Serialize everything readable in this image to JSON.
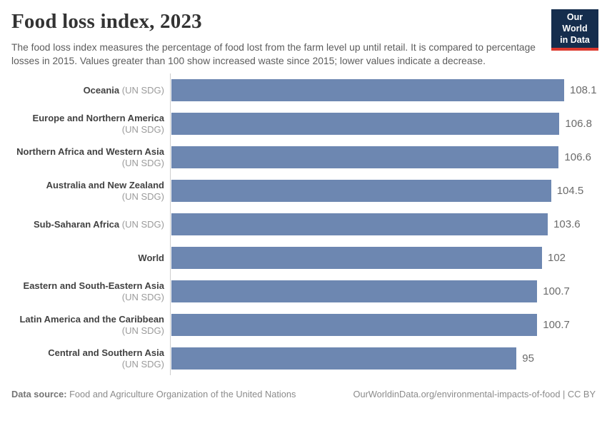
{
  "header": {
    "title": "Food loss index, 2023",
    "subtitle": "The food loss index measures the percentage of food lost from the farm level up until retail. It is compared to percentage losses in 2015. Values greater than 100 show increased waste since 2015; lower values indicate a decrease.",
    "logo": {
      "line1": "Our World",
      "line2": "in Data"
    }
  },
  "chart_data": {
    "type": "bar",
    "orientation": "horizontal",
    "title": "Food loss index, 2023",
    "xlabel": "",
    "ylabel": "",
    "xlim": [
      0,
      108.1
    ],
    "grid": false,
    "legend": "none",
    "categories": [
      "Oceania (UN SDG)",
      "Europe and Northern America (UN SDG)",
      "Northern Africa and Western Asia (UN SDG)",
      "Australia and New Zealand (UN SDG)",
      "Sub-Saharan Africa (UN SDG)",
      "World",
      "Eastern and South-Eastern Asia (UN SDG)",
      "Latin America and the Caribbean (UN SDG)",
      "Central and Southern Asia (UN SDG)"
    ],
    "values": [
      108.1,
      106.8,
      106.6,
      104.5,
      103.6,
      102,
      100.7,
      100.7,
      95
    ],
    "bars": [
      {
        "name": "Oceania",
        "qualifier": "(UN SDG)",
        "value": 108.1,
        "label": "108.1"
      },
      {
        "name": "Europe and Northern America",
        "qualifier": "(UN SDG)",
        "value": 106.8,
        "label": "106.8"
      },
      {
        "name": "Northern Africa and Western Asia",
        "qualifier": "(UN SDG)",
        "value": 106.6,
        "label": "106.6"
      },
      {
        "name": "Australia and New Zealand",
        "qualifier": "(UN SDG)",
        "value": 104.5,
        "label": "104.5"
      },
      {
        "name": "Sub-Saharan Africa",
        "qualifier": "(UN SDG)",
        "value": 103.6,
        "label": "103.6"
      },
      {
        "name": "World",
        "qualifier": "",
        "value": 102,
        "label": "102"
      },
      {
        "name": "Eastern and South-Eastern Asia",
        "qualifier": "(UN SDG)",
        "value": 100.7,
        "label": "100.7"
      },
      {
        "name": "Latin America and the Caribbean",
        "qualifier": "(UN SDG)",
        "value": 100.7,
        "label": "100.7"
      },
      {
        "name": "Central and Southern Asia",
        "qualifier": "(UN SDG)",
        "value": 95,
        "label": "95"
      }
    ]
  },
  "footer": {
    "source_label": "Data source:",
    "source_text": "Food and Agriculture Organization of the United Nations",
    "credit": "OurWorldinData.org/environmental-impacts-of-food | CC BY"
  },
  "colors": {
    "bar": "#6d87b1",
    "logo_bg": "#152d4d",
    "logo_accent": "#dd382d",
    "axis_line": "#cdcdcd"
  }
}
